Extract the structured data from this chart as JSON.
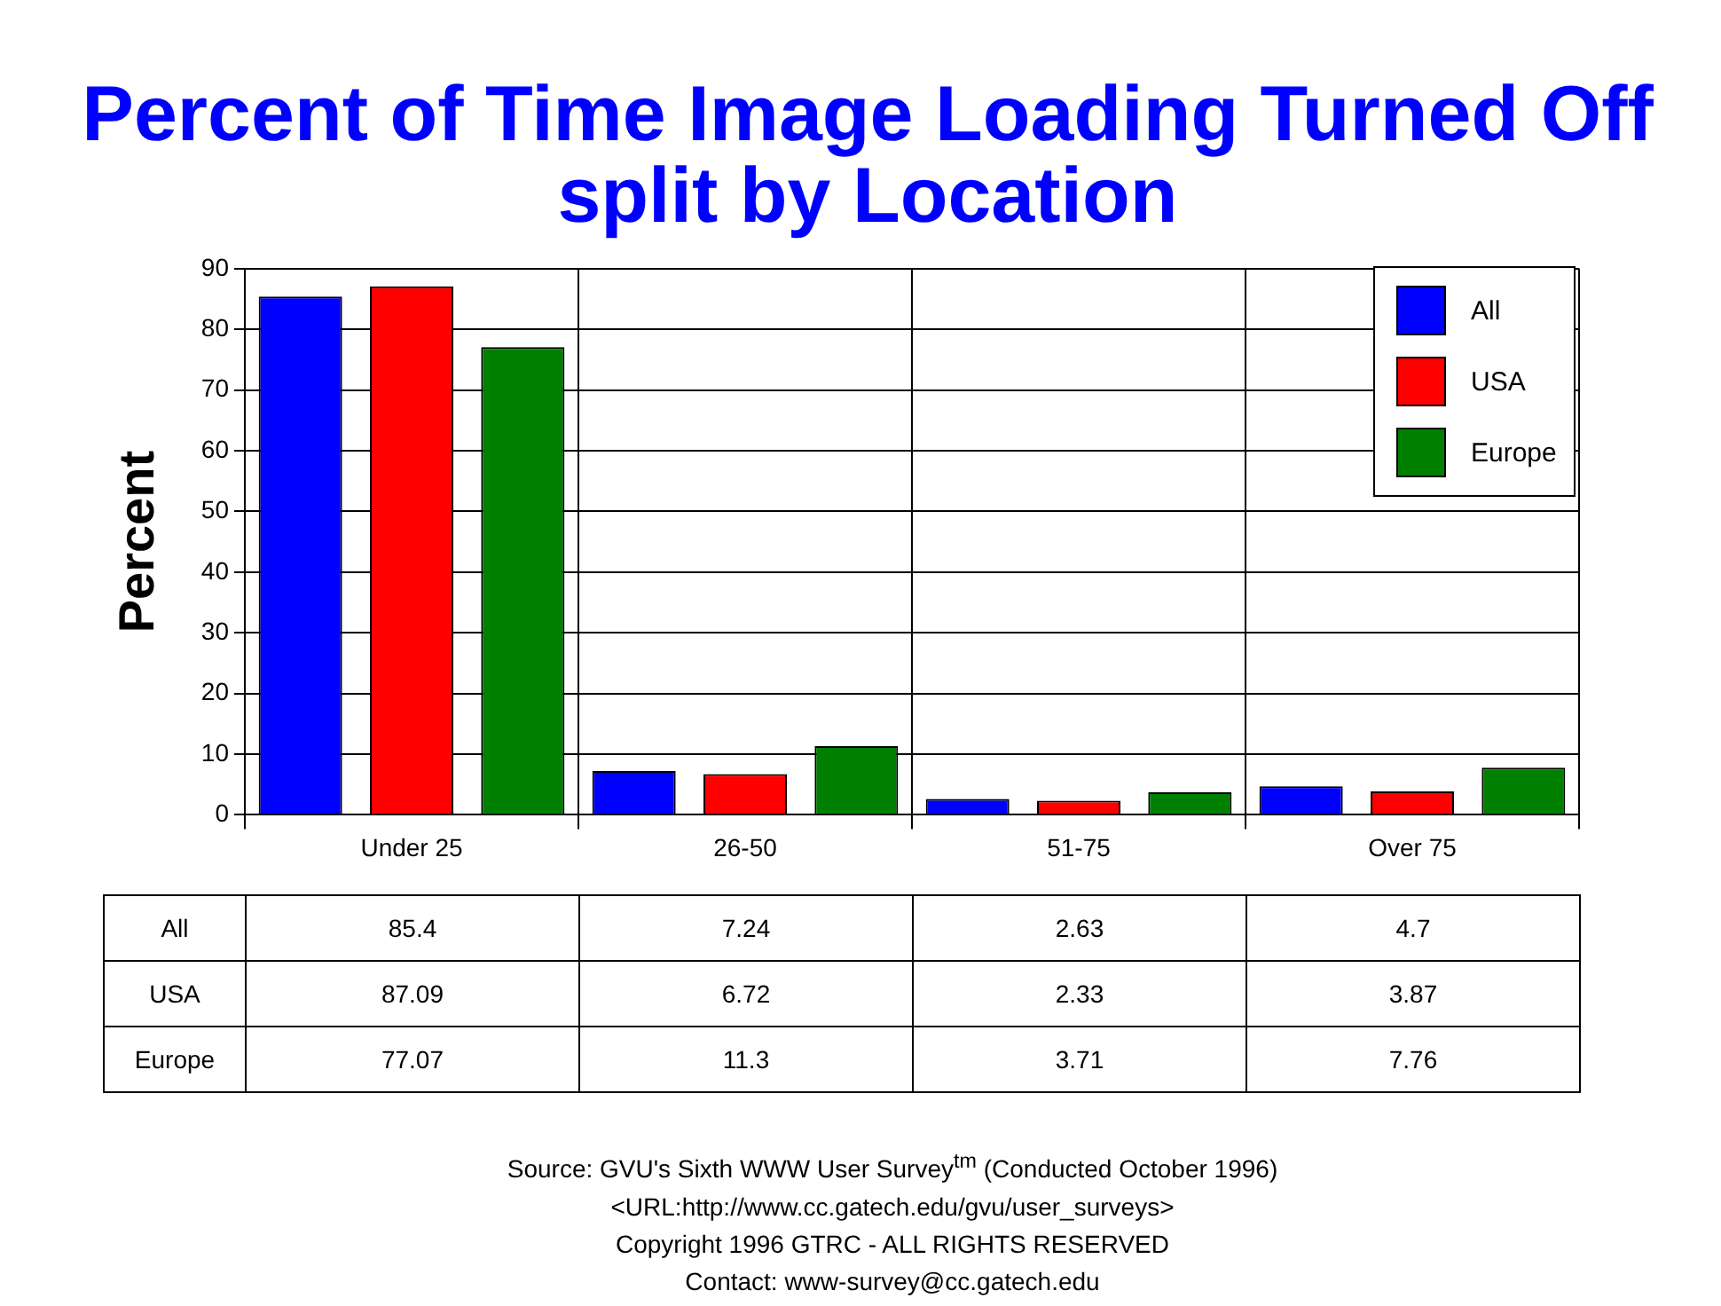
{
  "chart_data": {
    "type": "bar",
    "title": "Percent of Time Image Loading Turned Off split by Location",
    "ylabel": "Percent",
    "categories": [
      "Under 25",
      "26-50",
      "51-75",
      "Over 75"
    ],
    "series": [
      {
        "name": "All",
        "color": "#0000ff",
        "values": [
          85.4,
          7.24,
          2.63,
          4.7
        ]
      },
      {
        "name": "USA",
        "color": "#ff0000",
        "values": [
          87.09,
          6.72,
          2.33,
          3.87
        ]
      },
      {
        "name": "Europe",
        "color": "#008000",
        "values": [
          77.07,
          11.3,
          3.71,
          7.76
        ]
      }
    ],
    "ylim": [
      0,
      90
    ],
    "yticks": [
      0,
      10,
      20,
      30,
      40,
      50,
      60,
      70,
      80,
      90
    ],
    "grid": true,
    "legend": "top right",
    "data_labels": true,
    "annotations": [
      "Source: GVU's Sixth WWW User Survey$^{tm}$  (Conducted October 1996)",
      "<URL:http://www.cc.gatech.edu/gvu/user_surveys>",
      "Copyright 1996 GTRC - ALL RIGHTS RESERVED",
      "Contact: www-survey@cc.gatech.edu"
    ]
  }
}
